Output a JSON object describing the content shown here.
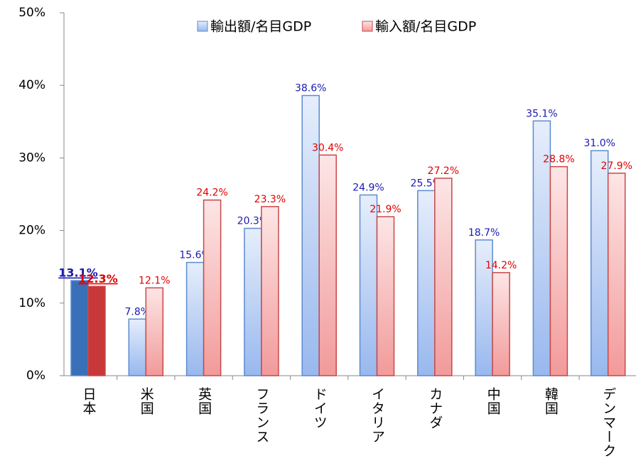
{
  "chart_data": {
    "type": "bar",
    "categories": [
      "日本",
      "米国",
      "英国",
      "フランス",
      "ドイツ",
      "イタリア",
      "カナダ",
      "中国",
      "韓国",
      "デンマーク"
    ],
    "series": [
      {
        "name": "輸出額/名目GDP",
        "color": "#5b8bd0",
        "highlight_color": "#3a70b8",
        "label_color": "#1a1ab4",
        "values": [
          13.1,
          7.8,
          15.6,
          20.3,
          38.6,
          24.9,
          25.5,
          18.7,
          35.1,
          31.0
        ],
        "value_labels": [
          "13.1%",
          "7.8%",
          "15.6%",
          "20.3%",
          "38.6%",
          "24.9%",
          "25.5%",
          "18.7%",
          "35.1%",
          "31.0%"
        ]
      },
      {
        "name": "輸入額/名目GDP",
        "color": "#c84848",
        "highlight_color": "#c83838",
        "label_color": "#e00000",
        "values": [
          12.3,
          12.1,
          24.2,
          23.3,
          30.4,
          21.9,
          27.2,
          14.2,
          28.8,
          27.9
        ],
        "value_labels": [
          "12.3%",
          "12.1%",
          "24.2%",
          "23.3%",
          "30.4%",
          "21.9%",
          "27.2%",
          "14.2%",
          "28.8%",
          "27.9%"
        ]
      }
    ],
    "highlight": "日本",
    "ylim": [
      0,
      50
    ],
    "yticks": [
      {
        "value": 0,
        "label": "0%"
      },
      {
        "value": 10,
        "label": "10%"
      },
      {
        "value": 20,
        "label": "20%"
      },
      {
        "value": 30,
        "label": "30%"
      },
      {
        "value": 40,
        "label": "40%"
      },
      {
        "value": 50,
        "label": "50%"
      }
    ],
    "grid": false,
    "legend": "top"
  }
}
